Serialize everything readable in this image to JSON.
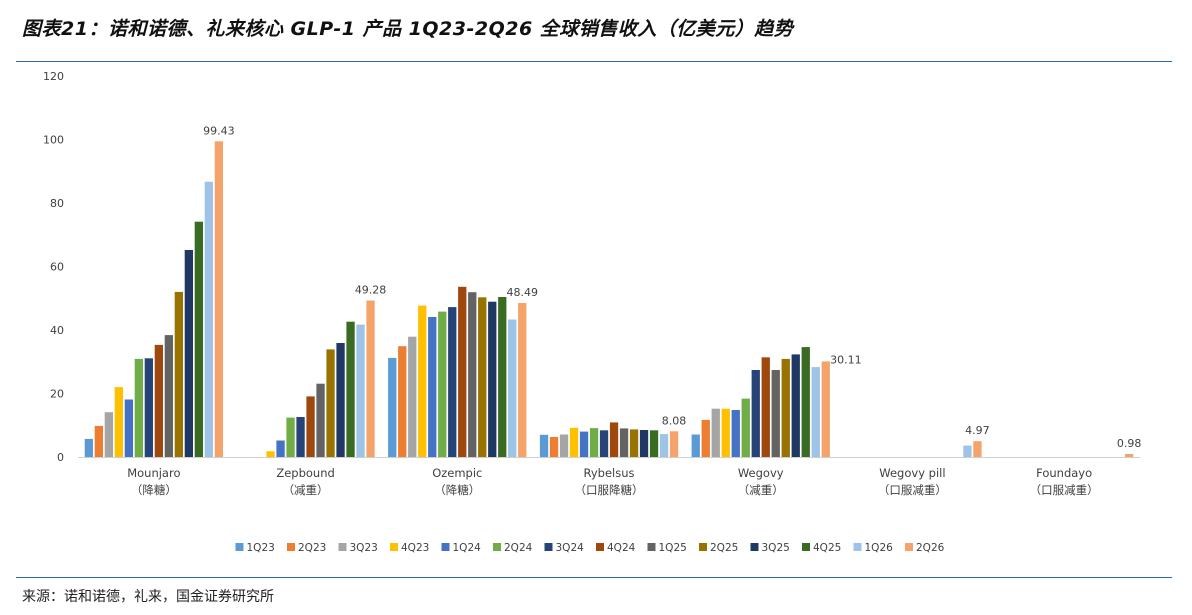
{
  "header": {
    "title": "图表21：诺和诺德、礼来核心 GLP-1 产品 1Q23-2Q26 全球销售收入（亿美元）趋势"
  },
  "footer": {
    "source": "来源：诺和诺德，礼来，国金证券研究所"
  },
  "chart_data": {
    "type": "bar",
    "title": "",
    "xlabel": "",
    "ylabel": "",
    "ylim": [
      0,
      120
    ],
    "yticks": [
      "0",
      "20",
      "40",
      "60",
      "80",
      "100",
      "120"
    ],
    "grid": false,
    "legend_position": "bottom",
    "categories": [
      {
        "name": "Mounjaro",
        "sub": "（降糖）"
      },
      {
        "name": "Zepbound",
        "sub": "（减重）"
      },
      {
        "name": "Ozempic",
        "sub": "（降糖）"
      },
      {
        "name": "Rybelsus",
        "sub": "（口服降糖）"
      },
      {
        "name": "Wegovy",
        "sub": "（减重）"
      },
      {
        "name": "Wegovy pill",
        "sub": "（口服减重）"
      },
      {
        "name": "Foundayo",
        "sub": "（口服减重）"
      }
    ],
    "series": [
      {
        "name": "1Q23",
        "color": "#5b9bd5",
        "values": [
          5.7,
          0,
          31.2,
          7.0,
          7.1,
          0,
          0
        ]
      },
      {
        "name": "2Q23",
        "color": "#ed7d31",
        "values": [
          9.8,
          0,
          34.9,
          6.3,
          11.7,
          0,
          0
        ]
      },
      {
        "name": "3Q23",
        "color": "#a5a5a5",
        "values": [
          14.1,
          0,
          37.9,
          7.1,
          15.2,
          0,
          0
        ]
      },
      {
        "name": "4Q23",
        "color": "#ffc000",
        "values": [
          22.0,
          1.8,
          47.7,
          9.2,
          15.2,
          0,
          0
        ]
      },
      {
        "name": "1Q24",
        "color": "#4472c4",
        "values": [
          18.1,
          5.2,
          44.1,
          8.0,
          14.8,
          0,
          0
        ]
      },
      {
        "name": "2Q24",
        "color": "#70ad47",
        "values": [
          30.9,
          12.4,
          45.8,
          9.1,
          18.4,
          0,
          0
        ]
      },
      {
        "name": "3Q24",
        "color": "#264478",
        "values": [
          31.1,
          12.6,
          47.2,
          8.4,
          27.4,
          0,
          0
        ]
      },
      {
        "name": "4Q24",
        "color": "#9e480e",
        "values": [
          35.3,
          19.1,
          53.6,
          10.9,
          31.4,
          0,
          0
        ]
      },
      {
        "name": "1Q25",
        "color": "#636363",
        "values": [
          38.4,
          23.1,
          51.9,
          9.0,
          27.4,
          0,
          0
        ]
      },
      {
        "name": "2Q25",
        "color": "#997300",
        "values": [
          52.0,
          33.9,
          50.3,
          8.7,
          30.9,
          0,
          0
        ]
      },
      {
        "name": "3Q25",
        "color": "#203864",
        "values": [
          65.2,
          35.9,
          48.9,
          8.5,
          32.3,
          0,
          0
        ]
      },
      {
        "name": "4Q25",
        "color": "#3a6b22",
        "values": [
          74.1,
          42.6,
          50.4,
          8.4,
          34.6,
          0,
          0
        ]
      },
      {
        "name": "1Q26",
        "color": "#9dc3e6",
        "values": [
          86.7,
          41.7,
          43.3,
          7.2,
          28.3,
          3.6,
          0
        ]
      },
      {
        "name": "2Q26",
        "color": "#f4a46a",
        "values": [
          99.43,
          49.28,
          48.49,
          8.08,
          30.11,
          4.97,
          0.98
        ]
      }
    ],
    "data_labels": [
      {
        "category_index": 0,
        "series_index": 13,
        "text": "99.43"
      },
      {
        "category_index": 1,
        "series_index": 13,
        "text": "49.28"
      },
      {
        "category_index": 2,
        "series_index": 13,
        "text": "48.49"
      },
      {
        "category_index": 3,
        "series_index": 13,
        "text": "8.08"
      },
      {
        "category_index": 4,
        "series_index": 13,
        "text": "30.11"
      },
      {
        "category_index": 5,
        "series_index": 13,
        "text": "4.97"
      },
      {
        "category_index": 6,
        "series_index": 13,
        "text": "0.98"
      }
    ]
  }
}
